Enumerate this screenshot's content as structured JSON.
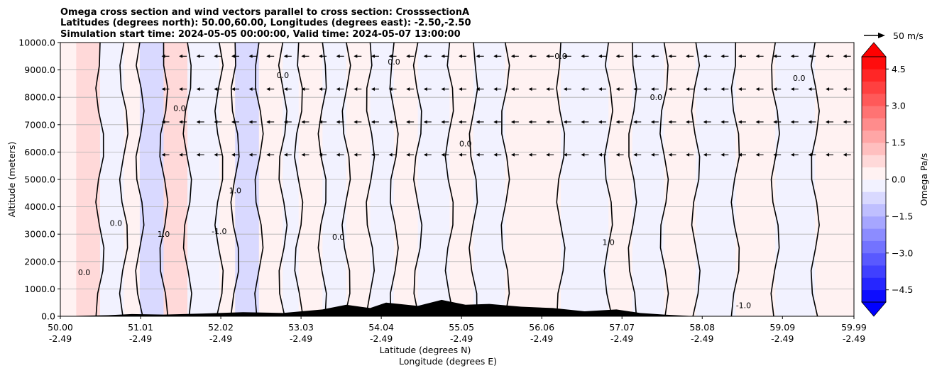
{
  "chart_data": {
    "type": "heatmap",
    "title_lines": [
      "Omega cross section and wind vectors parallel to cross section: CrosssectionA",
      "Latitudes (degrees north): 50.00,60.00, Longitudes (degrees east): -2.50,-2.50",
      "Simulation start time: 2024-05-05 00:00:00, Valid time: 2024-05-07 13:00:00"
    ],
    "ylabel": "Altitude (meters)",
    "xlabel_lines": [
      "Latitude (degrees N)",
      "Longitude (degrees E)"
    ],
    "ylim": [
      0,
      10000
    ],
    "yticks": [
      "0.0",
      "1000.0",
      "2000.0",
      "3000.0",
      "4000.0",
      "5000.0",
      "6000.0",
      "7000.0",
      "8000.0",
      "9000.0",
      "10000.0"
    ],
    "xlim": [
      50.0,
      59.99
    ],
    "xticks": [
      {
        "lat": "50.00",
        "lon": "-2.49"
      },
      {
        "lat": "51.01",
        "lon": "-2.49"
      },
      {
        "lat": "52.02",
        "lon": "-2.49"
      },
      {
        "lat": "53.03",
        "lon": "-2.49"
      },
      {
        "lat": "54.04",
        "lon": "-2.49"
      },
      {
        "lat": "55.05",
        "lon": "-2.49"
      },
      {
        "lat": "56.06",
        "lon": "-2.49"
      },
      {
        "lat": "57.07",
        "lon": "-2.49"
      },
      {
        "lat": "58.08",
        "lon": "-2.49"
      },
      {
        "lat": "59.09",
        "lon": "-2.49"
      },
      {
        "lat": "59.99",
        "lon": "-2.49"
      }
    ],
    "grid": true,
    "colorbar": {
      "label": "Omega Pa/s",
      "range": [
        -5.0,
        5.0
      ],
      "levels": 20,
      "ticks": [
        "4.5",
        "3.0",
        "1.5",
        "0.0",
        "−1.5",
        "−3.0",
        "−4.5"
      ],
      "tick_values": [
        4.5,
        3.0,
        1.5,
        0.0,
        -1.5,
        -3.0,
        -4.5
      ],
      "extend": "both",
      "colormap": "bwr"
    },
    "quiver_key": "50 m/s",
    "contour_labels": [
      "0.0",
      "1.0",
      "-1.0"
    ],
    "omega_bands": [
      {
        "lat": 50.0,
        "v": 0.1
      },
      {
        "lat": 50.2,
        "v": 0.5
      },
      {
        "lat": 50.5,
        "v": -0.4
      },
      {
        "lat": 50.8,
        "v": 0.3
      },
      {
        "lat": 51.0,
        "v": -0.6
      },
      {
        "lat": 51.3,
        "v": 0.6
      },
      {
        "lat": 51.6,
        "v": -0.4
      },
      {
        "lat": 52.0,
        "v": 0.3
      },
      {
        "lat": 52.2,
        "v": -0.8
      },
      {
        "lat": 52.5,
        "v": 0.3
      },
      {
        "lat": 52.8,
        "v": -0.2
      },
      {
        "lat": 53.0,
        "v": 0.2
      },
      {
        "lat": 53.3,
        "v": -0.5
      },
      {
        "lat": 53.6,
        "v": 0.4
      },
      {
        "lat": 53.9,
        "v": -0.5
      },
      {
        "lat": 54.2,
        "v": 0.2
      },
      {
        "lat": 54.5,
        "v": -0.4
      },
      {
        "lat": 54.9,
        "v": 0.3
      },
      {
        "lat": 55.2,
        "v": -0.3
      },
      {
        "lat": 55.6,
        "v": 0.2
      },
      {
        "lat": 56.0,
        "v": 0.1
      },
      {
        "lat": 56.3,
        "v": -0.3
      },
      {
        "lat": 56.6,
        "v": -0.5
      },
      {
        "lat": 56.9,
        "v": 0.3
      },
      {
        "lat": 57.2,
        "v": -0.2
      },
      {
        "lat": 57.6,
        "v": 0.2
      },
      {
        "lat": 58.0,
        "v": -0.3
      },
      {
        "lat": 58.5,
        "v": 0.2
      },
      {
        "lat": 59.0,
        "v": -0.3
      },
      {
        "lat": 59.5,
        "v": 0.1
      },
      {
        "lat": 59.99,
        "v": -0.2
      }
    ],
    "terrain": [
      {
        "lat": 50.0,
        "alt": 0
      },
      {
        "lat": 50.6,
        "alt": 40
      },
      {
        "lat": 50.9,
        "alt": 80
      },
      {
        "lat": 51.3,
        "alt": 60
      },
      {
        "lat": 51.8,
        "alt": 100
      },
      {
        "lat": 52.3,
        "alt": 150
      },
      {
        "lat": 52.8,
        "alt": 120
      },
      {
        "lat": 53.3,
        "alt": 250
      },
      {
        "lat": 53.6,
        "alt": 420
      },
      {
        "lat": 53.9,
        "alt": 300
      },
      {
        "lat": 54.1,
        "alt": 500
      },
      {
        "lat": 54.5,
        "alt": 380
      },
      {
        "lat": 54.8,
        "alt": 600
      },
      {
        "lat": 55.1,
        "alt": 420
      },
      {
        "lat": 55.4,
        "alt": 450
      },
      {
        "lat": 55.8,
        "alt": 350
      },
      {
        "lat": 56.2,
        "alt": 300
      },
      {
        "lat": 56.6,
        "alt": 180
      },
      {
        "lat": 57.0,
        "alt": 250
      },
      {
        "lat": 57.3,
        "alt": 120
      },
      {
        "lat": 57.6,
        "alt": 60
      },
      {
        "lat": 58.0,
        "alt": 0
      },
      {
        "lat": 59.99,
        "alt": 0
      }
    ]
  }
}
